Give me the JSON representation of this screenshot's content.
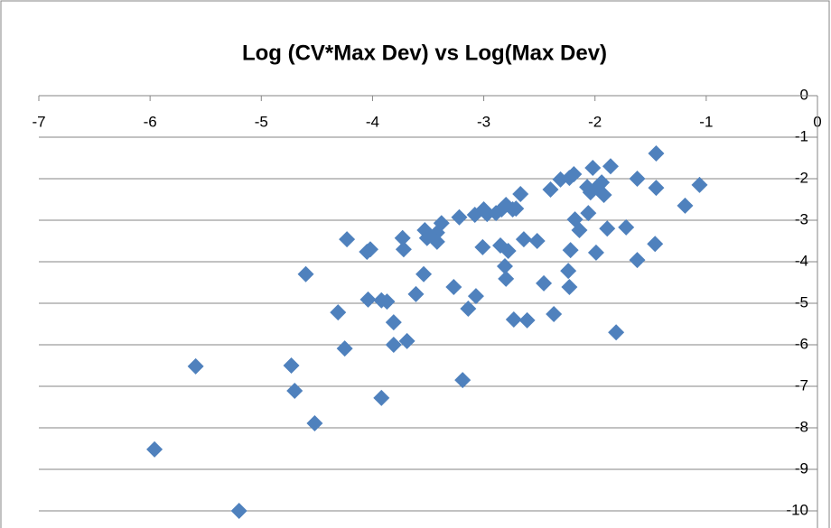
{
  "chart_data": {
    "type": "scatter",
    "title": "Log (CV*Max Dev) vs Log(Max Dev)",
    "color": "#4f81bd",
    "grid": true,
    "xlim": [
      -7,
      0
    ],
    "xticks": [
      -7,
      -6,
      -5,
      -4,
      -3,
      -2,
      -1,
      0
    ],
    "ylim": [
      -10,
      0
    ],
    "yticks": [
      0,
      -1,
      -2,
      -3,
      -4,
      -5,
      -6,
      -7,
      -8,
      -9,
      -10
    ],
    "x": [
      -5.96,
      -5.2,
      -5.59,
      -4.73,
      -4.7,
      -4.52,
      -4.6,
      -4.31,
      -4.25,
      -4.23,
      -4.05,
      -4.02,
      -4.04,
      -3.92,
      -3.87,
      -3.92,
      -3.81,
      -3.81,
      -3.69,
      -3.73,
      -3.72,
      -3.61,
      -3.54,
      -3.53,
      -3.51,
      -3.42,
      -3.42,
      -3.38,
      -3.27,
      -3.22,
      -3.19,
      -3.14,
      -3.07,
      -3.08,
      -3.01,
      -3.0,
      -2.97,
      -2.89,
      -2.85,
      -2.84,
      -2.8,
      -2.81,
      -2.8,
      -2.78,
      -2.74,
      -2.73,
      -2.71,
      -2.67,
      -2.64,
      -2.61,
      -2.52,
      -2.46,
      -2.4,
      -2.37,
      -2.31,
      -2.23,
      -2.24,
      -2.23,
      -2.22,
      -2.19,
      -2.18,
      -2.14,
      -2.07,
      -2.06,
      -2.04,
      -2.02,
      -1.99,
      -1.97,
      -1.94,
      -1.92,
      -1.89,
      -1.86,
      -1.81,
      -1.72,
      -1.62,
      -1.62,
      -1.45,
      -1.45,
      -1.46,
      -1.19,
      -1.06
    ],
    "values": [
      -8.52,
      -10.0,
      -6.52,
      -6.5,
      -7.11,
      -7.89,
      -4.3,
      -5.22,
      -6.09,
      -3.46,
      -3.76,
      -3.7,
      -4.91,
      -4.93,
      -4.96,
      -7.28,
      -5.46,
      -6.0,
      -5.91,
      -3.43,
      -3.7,
      -4.78,
      -4.3,
      -3.24,
      -3.43,
      -3.3,
      -3.52,
      -3.07,
      -4.61,
      -2.93,
      -6.85,
      -5.13,
      -4.83,
      -2.87,
      -3.65,
      -2.74,
      -2.85,
      -2.83,
      -3.61,
      -2.74,
      -2.63,
      -4.11,
      -4.41,
      -3.74,
      -2.74,
      -5.39,
      -2.72,
      -2.37,
      -3.46,
      -5.41,
      -3.5,
      -4.52,
      -2.26,
      -5.26,
      -2.02,
      -1.98,
      -4.22,
      -4.61,
      -3.72,
      -1.89,
      -2.98,
      -3.24,
      -2.2,
      -2.83,
      -2.33,
      -1.74,
      -3.78,
      -2.17,
      -2.09,
      -2.39,
      -3.2,
      -1.7,
      -5.7,
      -3.17,
      -2.0,
      -3.96,
      -1.39,
      -2.22,
      -3.57,
      -2.65,
      -2.15
    ]
  }
}
